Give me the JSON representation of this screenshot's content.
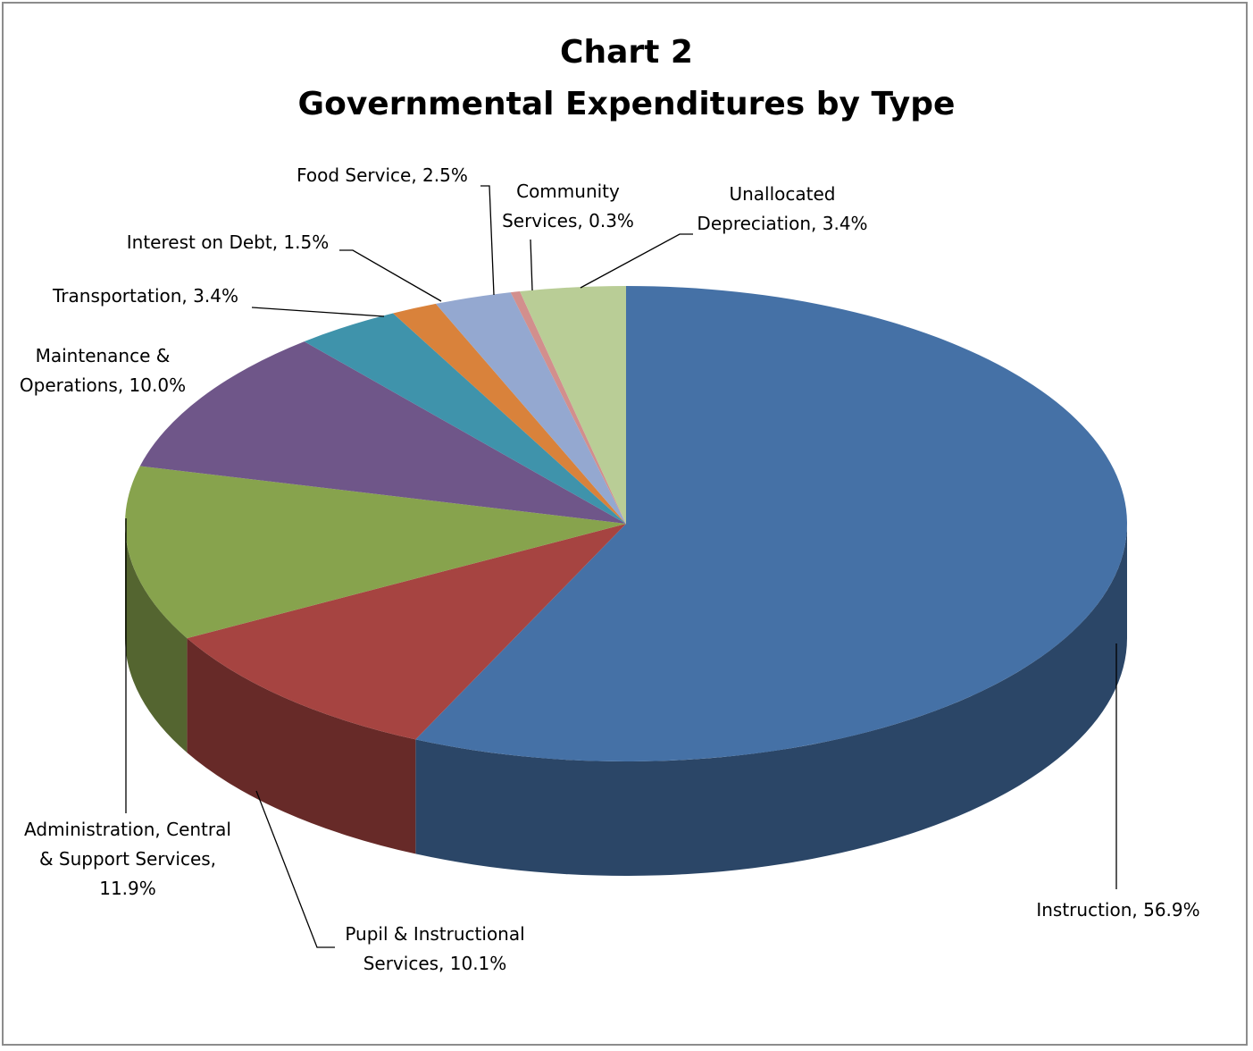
{
  "chart_data": {
    "type": "pie",
    "title": "Chart 2",
    "subtitle": "Governmental Expenditures by Type",
    "slices": [
      {
        "name": "Instruction",
        "value": 56.9,
        "label": "Instruction, 56.9%",
        "color": "#4571a6"
      },
      {
        "name": "Pupil & Instructional Services",
        "value": 10.1,
        "label": "Pupil & Instructional Services, 10.1%",
        "color": "#a64441"
      },
      {
        "name": "Administration, Central & Support Services",
        "value": 11.9,
        "label": "Administration, Central & Support Services, 11.9%",
        "color": "#87a34d"
      },
      {
        "name": "Maintenance & Operations",
        "value": 10.0,
        "label": "Maintenance & Operations, 10.0%",
        "color": "#6f5689"
      },
      {
        "name": "Transportation",
        "value": 3.4,
        "label": "Transportation, 3.4%",
        "color": "#3f93ab"
      },
      {
        "name": "Interest on Debt",
        "value": 1.5,
        "label": "Interest on Debt, 1.5%",
        "color": "#d9823b"
      },
      {
        "name": "Food Service",
        "value": 2.5,
        "label": "Food Service, 2.5%",
        "color": "#94a8d0"
      },
      {
        "name": "Community Services",
        "value": 0.3,
        "label": "Community Services, 0.3%",
        "color": "#d28f8d"
      },
      {
        "name": "Unallocated Depreciation",
        "value": 3.4,
        "label": "Unallocated Depreciation, 3.4%",
        "color": "#b9cd96"
      }
    ],
    "label_lines": [
      [
        "Instruction, 56.9%"
      ],
      [
        "Pupil & Instructional",
        "Services, 10.1%"
      ],
      [
        "Administration, Central",
        "& Support Services,",
        "11.9%"
      ],
      [
        "Maintenance &",
        "Operations, 10.0%"
      ],
      [
        "Transportation, 3.4%"
      ],
      [
        "Interest on Debt, 1.5%"
      ],
      [
        "Food Service, 2.5%"
      ],
      [
        "Community",
        "Services, 0.3%"
      ],
      [
        "Unallocated",
        "Depreciation, 3.4%"
      ]
    ],
    "legend": "none",
    "grid": false
  }
}
